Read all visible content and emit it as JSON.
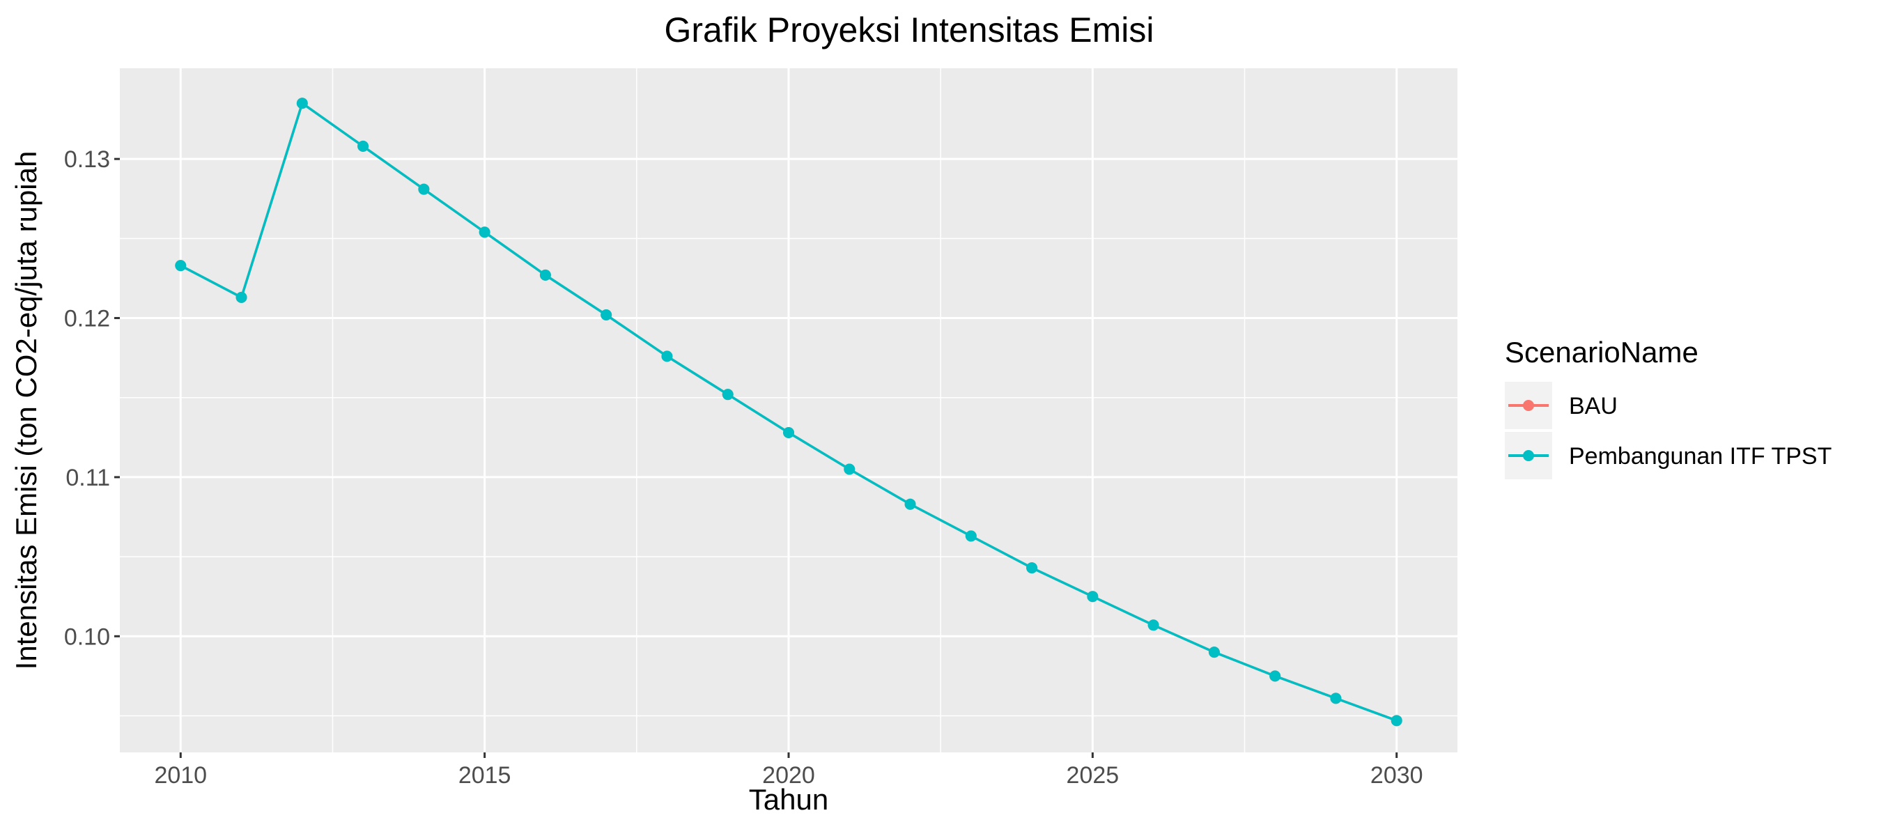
{
  "chart_data": {
    "type": "line",
    "title": "Grafik Proyeksi Intensitas Emisi",
    "xlabel": "Tahun",
    "ylabel": "Intensitas Emisi (ton CO2-eq/juta rupiah",
    "xlim": [
      2009.0,
      2031.0
    ],
    "ylim": [
      0.0927,
      0.1357
    ],
    "x_ticks": [
      2010,
      2015,
      2020,
      2025,
      2030
    ],
    "x_tick_labels": [
      "2010",
      "2015",
      "2020",
      "2025",
      "2030"
    ],
    "y_ticks": [
      0.1,
      0.11,
      0.12,
      0.13
    ],
    "y_tick_labels": [
      "0.10",
      "0.11",
      "0.12",
      "0.13"
    ],
    "grid": true,
    "legend_position": "right",
    "legend_title": "ScenarioName",
    "x": [
      2010,
      2011,
      2012,
      2013,
      2014,
      2015,
      2016,
      2017,
      2018,
      2019,
      2020,
      2021,
      2022,
      2023,
      2024,
      2025,
      2026,
      2027,
      2028,
      2029,
      2030
    ],
    "series": [
      {
        "name": "BAU",
        "color": "#F8766D",
        "values": [
          0.1233,
          0.1213,
          0.1335,
          0.1308,
          0.1281,
          0.1254,
          0.1227,
          0.1202,
          0.1176,
          0.1152,
          0.1128,
          0.1105,
          0.1083,
          0.1063,
          0.1043,
          0.1025,
          0.1007,
          0.099,
          0.0975,
          0.0961,
          0.0947
        ]
      },
      {
        "name": "Pembangunan ITF TPST",
        "color": "#00BFC4",
        "values": [
          0.1233,
          0.1213,
          0.1335,
          0.1308,
          0.1281,
          0.1254,
          0.1227,
          0.1202,
          0.1176,
          0.1152,
          0.1128,
          0.1105,
          0.1083,
          0.1063,
          0.1043,
          0.1025,
          0.1007,
          0.099,
          0.0975,
          0.0961,
          0.0947
        ]
      }
    ]
  }
}
